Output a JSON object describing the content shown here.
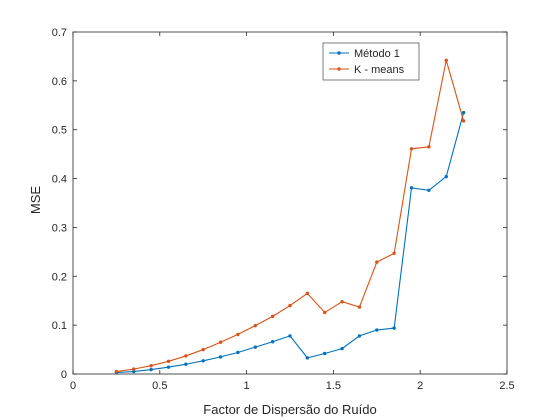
{
  "chart_data": {
    "type": "line",
    "title": "",
    "xlabel": "Factor de Dispersão do Ruído",
    "ylabel": "MSE",
    "xlim": [
      0,
      2.5
    ],
    "ylim": [
      0,
      0.7
    ],
    "xticks": [
      "0",
      "0.5",
      "1",
      "1.5",
      "2",
      "2.5"
    ],
    "yticks": [
      "0",
      "0.1",
      "0.2",
      "0.3",
      "0.4",
      "0.5",
      "0.6",
      "0.7"
    ],
    "grid": false,
    "legend_position": "top-right",
    "x": [
      0.25,
      0.35,
      0.45,
      0.55,
      0.65,
      0.75,
      0.85,
      0.95,
      1.05,
      1.15,
      1.25,
      1.35,
      1.45,
      1.55,
      1.65,
      1.75,
      1.85,
      1.95,
      2.05,
      2.15,
      2.25
    ],
    "series": [
      {
        "name": "Método 1",
        "color": "#0072BD",
        "values": [
          0.003,
          0.005,
          0.009,
          0.014,
          0.02,
          0.027,
          0.035,
          0.044,
          0.055,
          0.066,
          0.078,
          0.033,
          0.042,
          0.052,
          0.078,
          0.09,
          0.094,
          0.381,
          0.376,
          0.404,
          0.535
        ]
      },
      {
        "name": "K - means",
        "color": "#D95319",
        "values": [
          0.005,
          0.01,
          0.017,
          0.026,
          0.037,
          0.05,
          0.065,
          0.081,
          0.099,
          0.118,
          0.14,
          0.165,
          0.126,
          0.148,
          0.137,
          0.229,
          0.247,
          0.461,
          0.465,
          0.642,
          0.518
        ]
      }
    ]
  }
}
